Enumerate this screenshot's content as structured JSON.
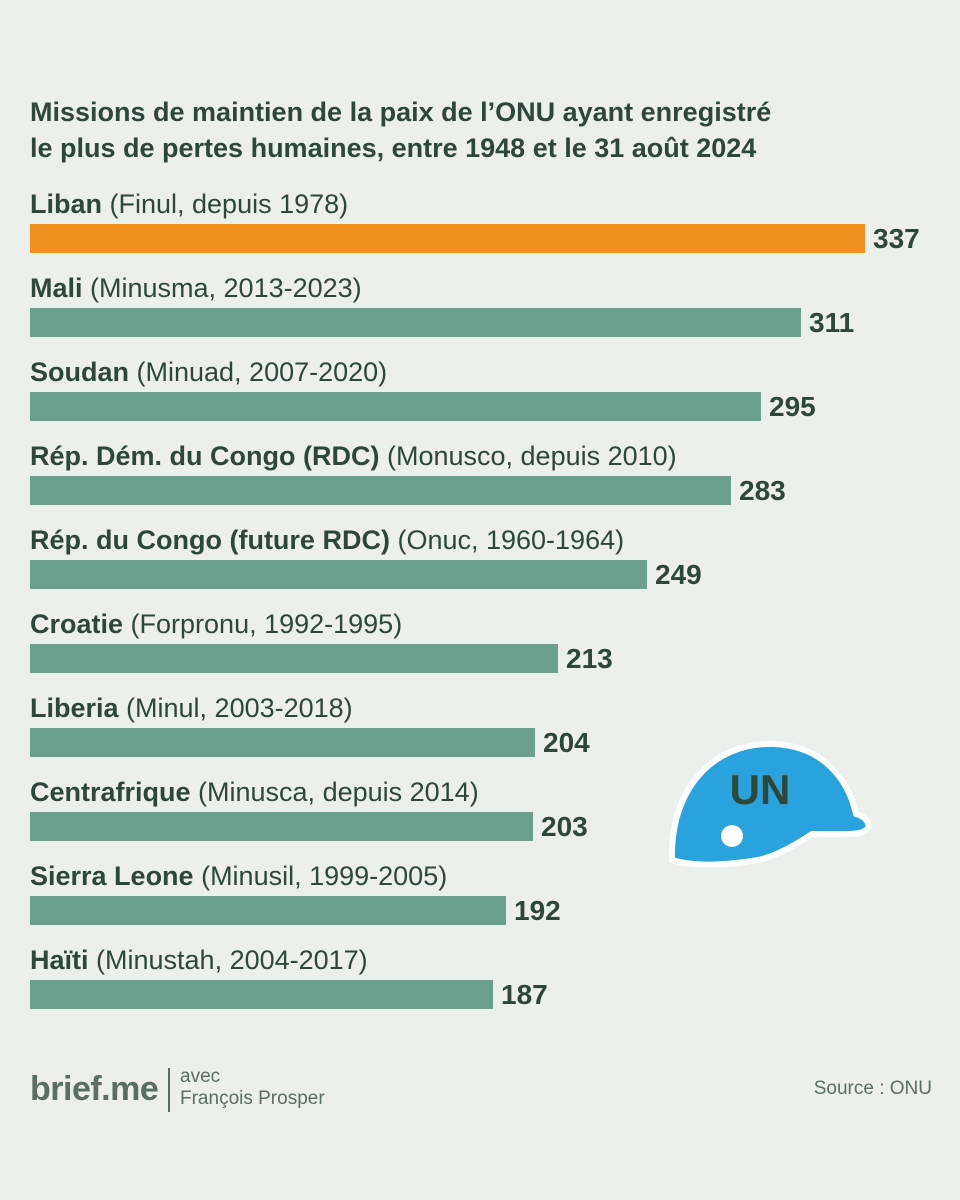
{
  "chart_data": {
    "type": "bar",
    "orientation": "horizontal",
    "title": "Missions de maintien de la paix de l’ONU ayant enregistré le plus de pertes humaines, entre 1948 et le 31 août 2024",
    "title_lines": [
      "Missions de maintien de la paix de l’ONU ayant enregistré",
      "le plus de pertes humaines, entre 1948 et le 31 août 2024"
    ],
    "xlabel": "",
    "ylabel": "",
    "xlim": [
      0,
      337
    ],
    "grid": false,
    "highlight_color": "#f0901f",
    "bar_color": "#6aa08e",
    "rows": [
      {
        "country": "Liban",
        "mission": " (Finul, depuis 1978)",
        "value": 337,
        "highlight": true
      },
      {
        "country": "Mali",
        "mission": " (Minusma, 2013-2023)",
        "value": 311,
        "highlight": false
      },
      {
        "country": "Soudan",
        "mission": " (Minuad, 2007-2020)",
        "value": 295,
        "highlight": false
      },
      {
        "country": "Rép. Dém. du Congo (RDC)",
        "mission": " (Monusco, depuis 2010)",
        "value": 283,
        "highlight": false
      },
      {
        "country": "Rép. du Congo (future RDC)",
        "mission": " (Onuc, 1960-1964)",
        "value": 249,
        "highlight": false
      },
      {
        "country": "Croatie",
        "mission": " (Forpronu, 1992-1995)",
        "value": 213,
        "highlight": false
      },
      {
        "country": "Liberia",
        "mission": " (Minul, 2003-2018)",
        "value": 204,
        "highlight": false
      },
      {
        "country": "Centrafrique",
        "mission": " (Minusca, depuis 2014)",
        "value": 203,
        "highlight": false
      },
      {
        "country": "Sierra Leone",
        "mission": " (Minusil, 1999-2005)",
        "value": 192,
        "highlight": false
      },
      {
        "country": "Haïti",
        "mission": " (Minustah, 2004-2017)",
        "value": 187,
        "highlight": false
      }
    ]
  },
  "illustration": {
    "icon": "un-helmet-icon",
    "text": "UN",
    "color": "#29a3dd"
  },
  "footer": {
    "brand": "brief.me",
    "credit_lines": [
      "avec",
      "François Prosper"
    ],
    "source": "Source : ONU"
  }
}
